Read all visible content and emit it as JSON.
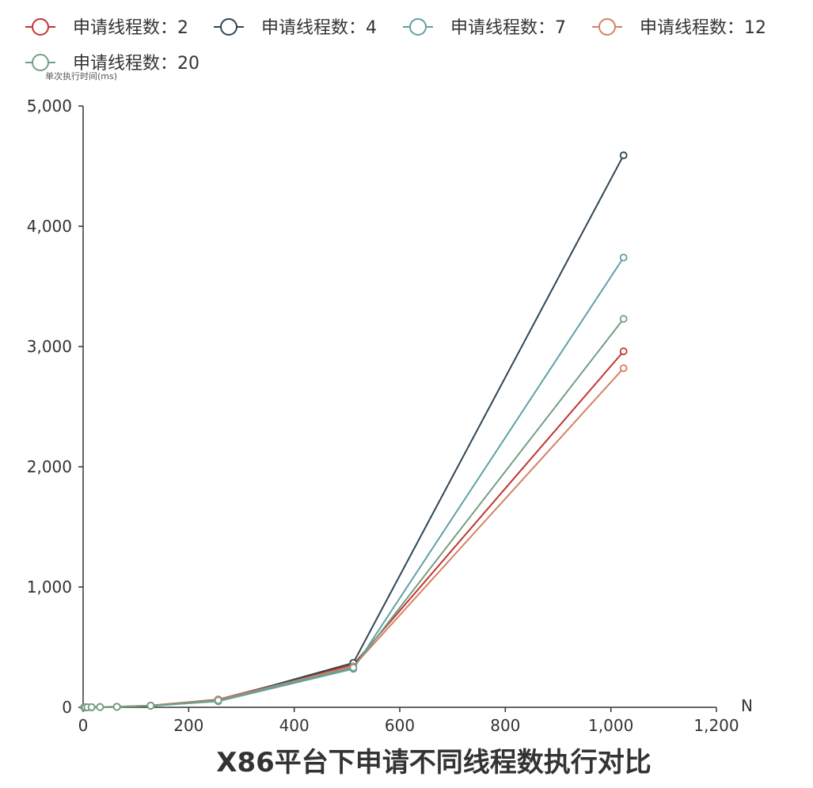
{
  "chart_data": {
    "type": "line",
    "title": "X86平台下申请不同线程数执行对比",
    "xlabel": "N",
    "ylabel": "单次执行时间(ms)",
    "xlim": [
      0,
      1200
    ],
    "ylim": [
      0,
      5000
    ],
    "xticks": [
      0,
      200,
      400,
      600,
      800,
      1000,
      1200
    ],
    "yticks": [
      0,
      1000,
      2000,
      3000,
      4000,
      5000
    ],
    "xtick_labels": [
      "0",
      "200",
      "400",
      "600",
      "800",
      "1,000",
      "1,200"
    ],
    "ytick_labels": [
      "0",
      "1,000",
      "2,000",
      "3,000",
      "4,000",
      "5,000"
    ],
    "grid": false,
    "legend_position": "top",
    "x": [
      2,
      4,
      8,
      16,
      32,
      64,
      128,
      256,
      512,
      1024
    ],
    "series": [
      {
        "name": "申请线程数：2",
        "color": "#c23531",
        "values": [
          0,
          0,
          0,
          1,
          2,
          5,
          15,
          65,
          355,
          2960
        ]
      },
      {
        "name": "申请线程数：4",
        "color": "#2f4554",
        "values": [
          0,
          0,
          0,
          1,
          2,
          4,
          12,
          55,
          370,
          4590
        ]
      },
      {
        "name": "申请线程数：7",
        "color": "#61a0a8",
        "values": [
          0,
          0,
          0,
          1,
          2,
          4,
          12,
          50,
          320,
          3740
        ]
      },
      {
        "name": "申请线程数：12",
        "color": "#d48265",
        "values": [
          0,
          0,
          0,
          1,
          2,
          5,
          14,
          62,
          340,
          2820
        ]
      },
      {
        "name": "申请线程数：20",
        "color": "#749f83",
        "values": [
          0,
          0,
          0,
          1,
          2,
          4,
          13,
          58,
          330,
          3230
        ]
      }
    ]
  }
}
